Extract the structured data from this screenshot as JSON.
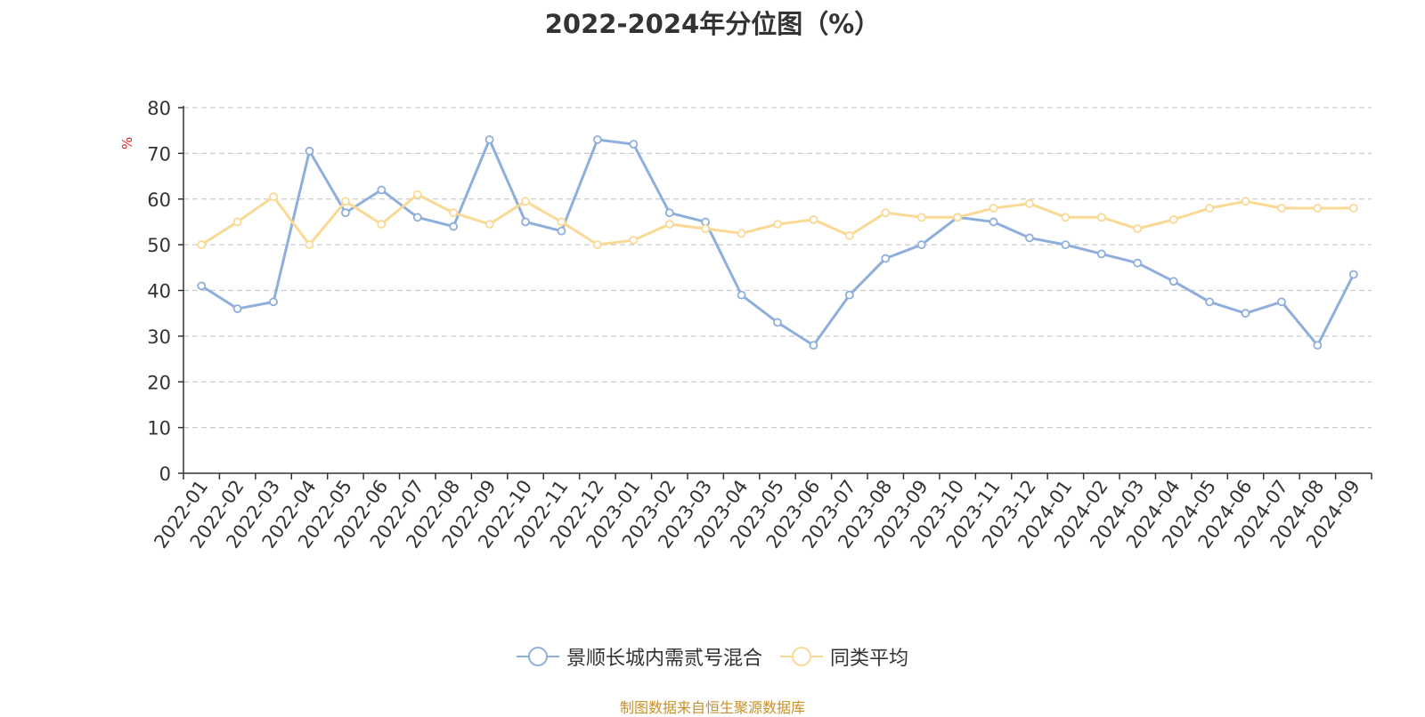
{
  "chart_data": {
    "type": "line",
    "title": "2022-2024年分位图（%）",
    "ylabel": "%",
    "xlabel": "",
    "ylim": [
      0,
      80
    ],
    "yticks": [
      0,
      10,
      20,
      30,
      40,
      50,
      60,
      70,
      80
    ],
    "grid": true,
    "legend_position": "bottom",
    "categories": [
      "2022-01",
      "2022-02",
      "2022-03",
      "2022-04",
      "2022-05",
      "2022-06",
      "2022-07",
      "2022-08",
      "2022-09",
      "2022-10",
      "2022-11",
      "2022-12",
      "2023-01",
      "2023-02",
      "2023-03",
      "2023-04",
      "2023-05",
      "2023-06",
      "2023-07",
      "2023-08",
      "2023-09",
      "2023-10",
      "2023-11",
      "2023-12",
      "2024-01",
      "2024-02",
      "2024-03",
      "2024-04",
      "2024-05",
      "2024-06",
      "2024-07",
      "2024-08",
      "2024-09"
    ],
    "series": [
      {
        "name": "景顺长城内需贰号混合",
        "color": "#8eaedb",
        "values": [
          41,
          36,
          37.5,
          70.5,
          57,
          62,
          56,
          54,
          73,
          55,
          53,
          73,
          72,
          57,
          55,
          39,
          33,
          28,
          39,
          47,
          50,
          56,
          55,
          51.5,
          50,
          48,
          46,
          42,
          37.5,
          35,
          37.5,
          28,
          43.5
        ]
      },
      {
        "name": "同类平均",
        "color": "#fad994",
        "values": [
          50,
          55,
          60.5,
          50,
          59.5,
          54.5,
          61,
          57,
          54.5,
          59.5,
          55,
          50,
          51,
          54.5,
          53.5,
          52.5,
          54.5,
          55.5,
          52,
          57,
          56,
          56,
          58,
          59,
          56,
          56,
          53.5,
          55.5,
          58,
          59.5,
          58,
          58,
          58
        ]
      }
    ]
  },
  "source_note": "制图数据来自恒生聚源数据库"
}
